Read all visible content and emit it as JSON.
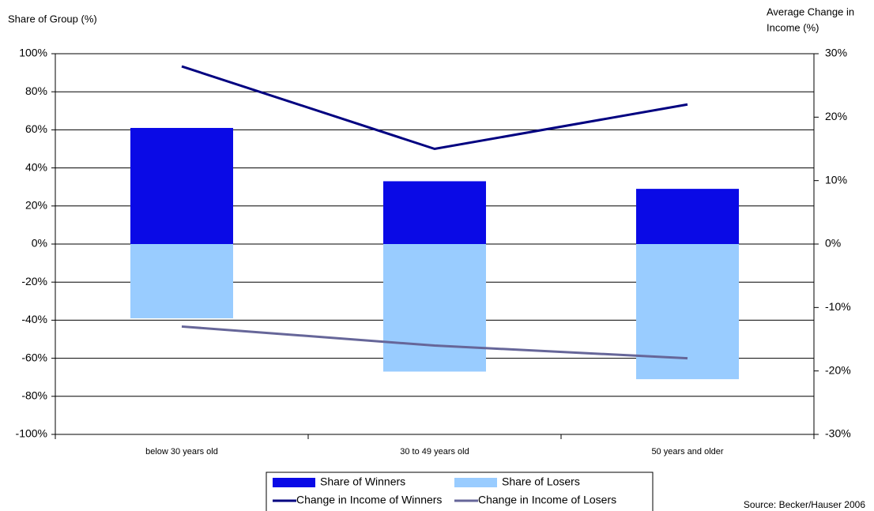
{
  "chart_data": {
    "type": "bar",
    "ylabel": "Share of Group (%)",
    "y2label": [
      "Average Change in",
      "Income (%)"
    ],
    "source": "Source: Becker/Hauser 2006",
    "categories": [
      "below 30 years old",
      "30 to 49 years old",
      "50 years and older"
    ],
    "series": [
      {
        "name": "Share of Winners",
        "type": "bar",
        "color": "#0a0ae6",
        "values": [
          61,
          33,
          29
        ]
      },
      {
        "name": "Share of Losers",
        "type": "bar",
        "color": "#99ccff",
        "values": [
          -39,
          -67,
          -71
        ]
      },
      {
        "name": "Change in Income of Winners",
        "type": "line",
        "axis": "y2",
        "color": "#000080",
        "values": [
          28,
          15,
          22
        ]
      },
      {
        "name": "Change in Income of Losers",
        "type": "line",
        "axis": "y2",
        "color": "#666699",
        "values": [
          -13,
          -16,
          -18
        ]
      }
    ],
    "ylim": [
      -100,
      100
    ],
    "yticks": [
      {
        "value": -100,
        "label": "-100%"
      },
      {
        "value": -80,
        "label": "-80%"
      },
      {
        "value": -60,
        "label": "-60%"
      },
      {
        "value": -40,
        "label": "-40%"
      },
      {
        "value": -20,
        "label": "-20%"
      },
      {
        "value": 0,
        "label": "0%"
      },
      {
        "value": 20,
        "label": "20%"
      },
      {
        "value": 40,
        "label": "40%"
      },
      {
        "value": 60,
        "label": "60%"
      },
      {
        "value": 80,
        "label": "80%"
      },
      {
        "value": 100,
        "label": "100%"
      }
    ],
    "y2lim": [
      -30,
      30
    ],
    "y2ticks": [
      {
        "value": -30,
        "label": "-30%"
      },
      {
        "value": -20,
        "label": "-20%"
      },
      {
        "value": -10,
        "label": "-10%"
      },
      {
        "value": 0,
        "label": "0%"
      },
      {
        "value": 10,
        "label": "10%"
      },
      {
        "value": 20,
        "label": "20%"
      },
      {
        "value": 30,
        "label": "30%"
      }
    ],
    "grid": true,
    "legend": "bottom"
  }
}
